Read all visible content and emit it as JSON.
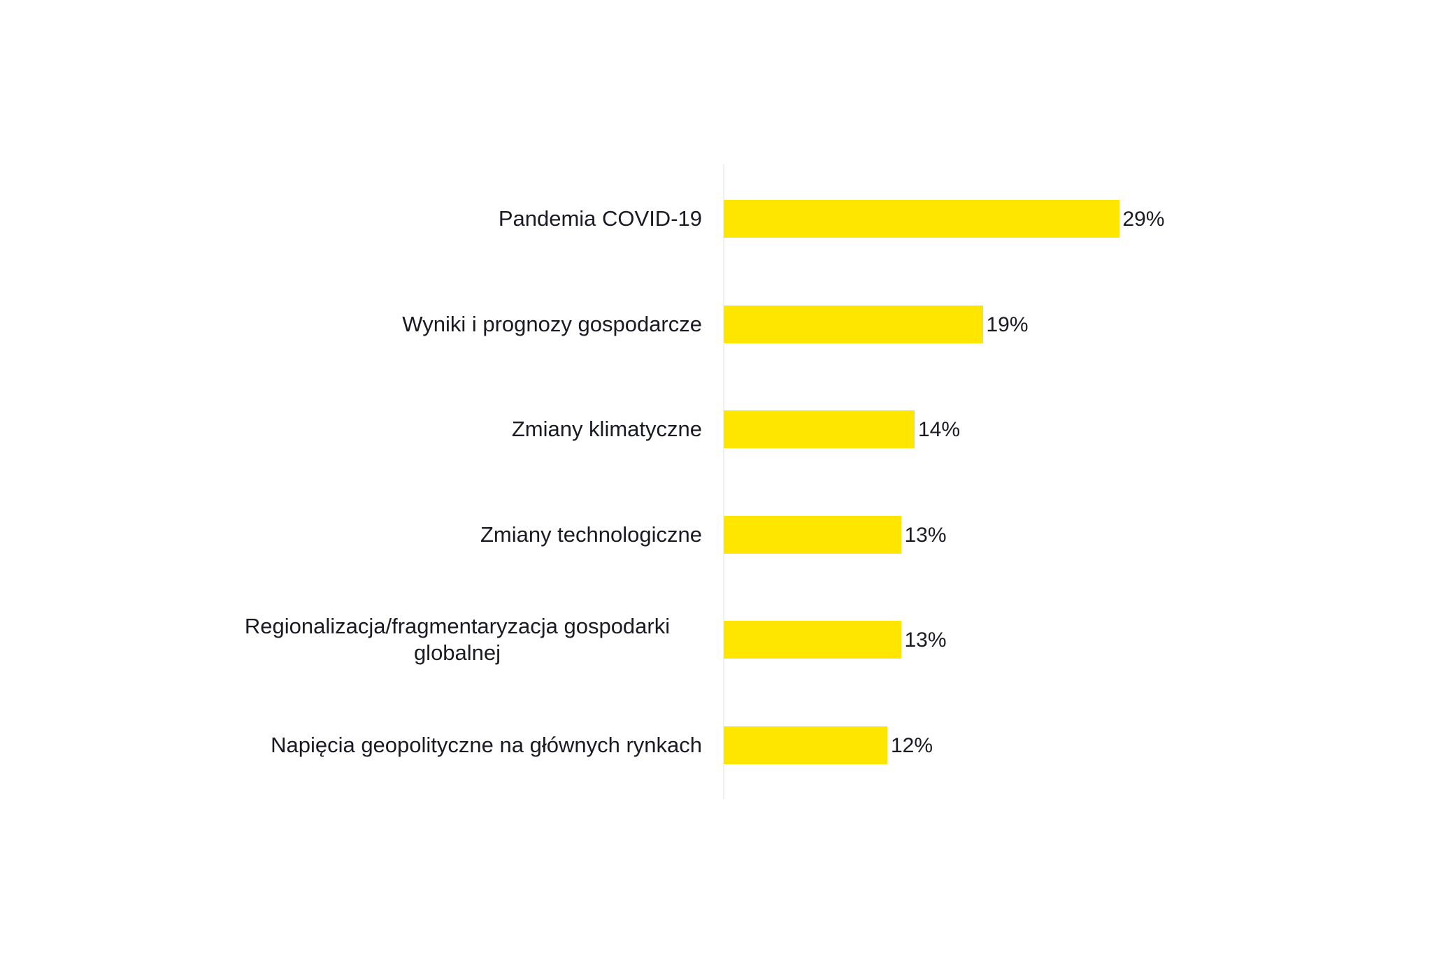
{
  "chart_data": {
    "type": "bar",
    "orientation": "horizontal",
    "categories": [
      "Pandemia COVID-19",
      "Wyniki i prognozy gospodarcze",
      "Zmiany klimatyczne",
      "Zmiany technologiczne",
      "Regionalizacja/fragmentaryzacja gospodarki globalnej",
      "Napięcia geopolityczne na głównych rynkach"
    ],
    "values": [
      29,
      19,
      14,
      13,
      13,
      12
    ],
    "value_labels": [
      "29%",
      "19%",
      "14%",
      "13%",
      "13%",
      "12%"
    ],
    "color": "#ffe600"
  }
}
